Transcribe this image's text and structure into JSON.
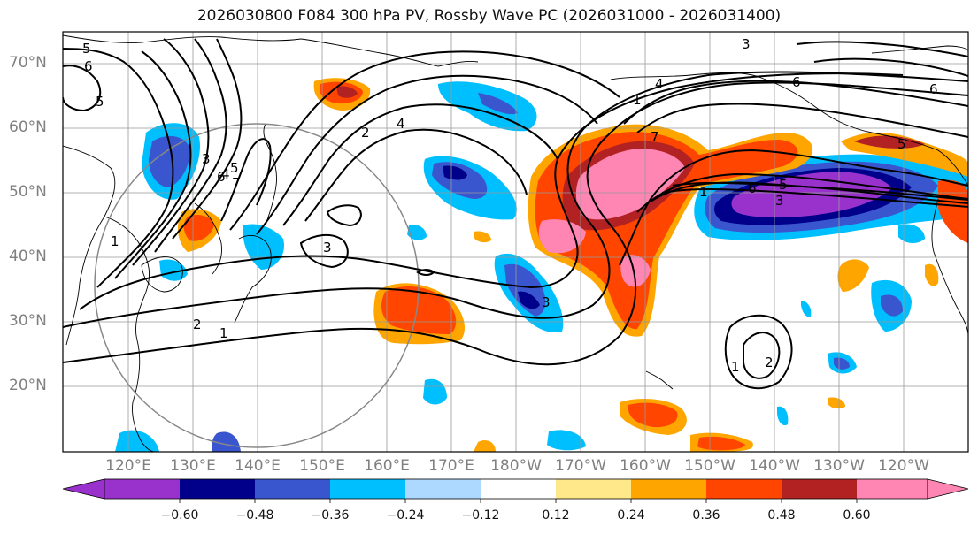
{
  "title": "2026030800 F084 300 hPa PV, Rossby Wave PC (2026031000 - 2026031400)",
  "lat_labels": [
    "70°N",
    "60°N",
    "50°N",
    "40°N",
    "30°N",
    "20°N"
  ],
  "lon_labels": [
    "120°E",
    "130°E",
    "140°E",
    "150°E",
    "160°E",
    "170°E",
    "180°W",
    "170°W",
    "160°W",
    "150°W",
    "140°W",
    "130°W",
    "120°W"
  ],
  "contour_labels": [
    "1",
    "2",
    "3",
    "4",
    "5",
    "6",
    "7",
    "3",
    "3",
    "4",
    "5",
    "6",
    "1",
    "2",
    "1",
    "1",
    "2",
    "3",
    "4",
    "5",
    "6",
    "3",
    "5",
    "6",
    "5",
    "6",
    "7",
    "1"
  ],
  "colorbar": {
    "ticks": [
      "−0.60",
      "−0.48",
      "−0.36",
      "−0.24",
      "−0.12",
      "0.12",
      "0.24",
      "0.36",
      "0.48",
      "0.60"
    ],
    "colors": [
      "#9932CC",
      "#00008B",
      "#3A56CF",
      "#00BFFF",
      "#ADD8FF",
      "#FFFFFF",
      "#FFE88A",
      "#FFA500",
      "#FF4500",
      "#B22222",
      "#FF85B3",
      "#FF85B3"
    ]
  },
  "colors": {
    "purple": "#9932CC",
    "navy": "#00008B",
    "blue": "#3A56CF",
    "cyan": "#00BFFF",
    "lightblue": "#ADD8FF",
    "yellow": "#FFE88A",
    "orange": "#FFA500",
    "redorange": "#FF4500",
    "firebrick": "#B22222",
    "pink": "#FF85B3"
  }
}
